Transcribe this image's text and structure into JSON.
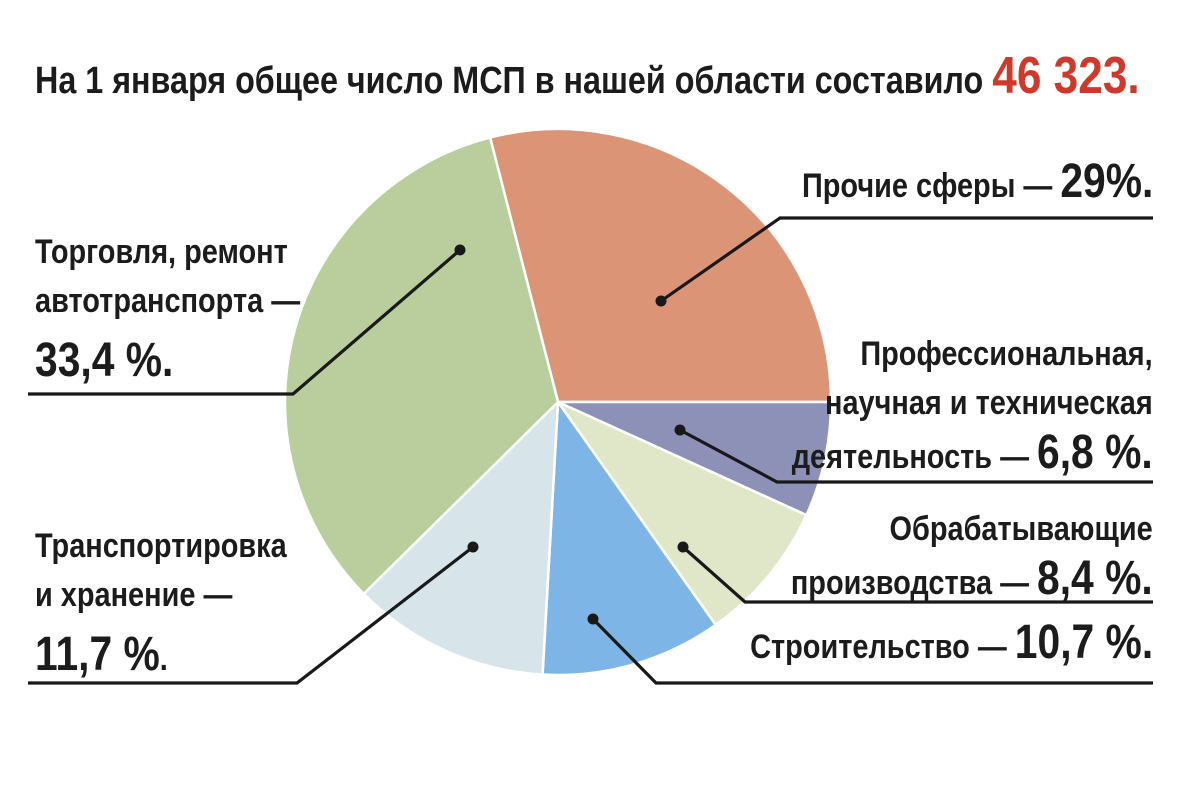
{
  "headline": {
    "prefix": "На 1 января общее число МСП в нашей области составило",
    "total": "46 323.",
    "accent_color": "#cd3a2b"
  },
  "chart_data": {
    "type": "pie",
    "title": "На 1 января общее число МСП в нашей области составило 46 323.",
    "total_msp": "46 323",
    "unit": "%",
    "start_angle_deg": -14.4,
    "legend_position": "none",
    "grid": false,
    "slices": [
      {
        "key": "other",
        "label": "Прочие сферы",
        "value": 29.0,
        "display": "29%.",
        "color": "#db9476"
      },
      {
        "key": "professional",
        "label": "Профессиональная, научная и техническая деятельность",
        "value": 6.8,
        "display": "6,8 %.",
        "color": "#8d90b7"
      },
      {
        "key": "manufacturing",
        "label": "Обрабатывающие производства",
        "value": 8.4,
        "display": "8,4 %.",
        "color": "#e0e7c9"
      },
      {
        "key": "construction",
        "label": "Строительство",
        "value": 10.7,
        "display": "10,7 %.",
        "color": "#7eb5e7"
      },
      {
        "key": "transport",
        "label": "Транспортировка и хранение",
        "value": 11.7,
        "display": "11,7 %.",
        "color": "#d7e5eb"
      },
      {
        "key": "trade",
        "label": "Торговля, ремонт автотранспорта",
        "value": 33.4,
        "display": "33,4 %.",
        "color": "#b9ce9c"
      }
    ]
  },
  "callouts": {
    "other": {
      "line1": "Прочие сферы —",
      "value": "29%."
    },
    "professional": {
      "line1": "Профессиональная,",
      "line2": "научная и техническая",
      "line3": "деятельность —",
      "value": "6,8 %."
    },
    "manufacturing": {
      "line1": "Обрабатывающие",
      "line2": "производства —",
      "value": "8,4 %."
    },
    "construction": {
      "line1": "Строительство —",
      "value": "10,7 %."
    },
    "trade": {
      "line1": "Торговля, ремонт",
      "line2": "автотранспорта —",
      "value": "33,4 %."
    },
    "transport": {
      "line1": "Транспортировка",
      "line2": "и хранение —",
      "value": "11,7 %",
      "suffix": "."
    }
  }
}
